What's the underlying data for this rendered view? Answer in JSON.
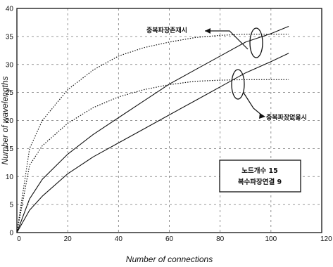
{
  "chart_data": {
    "type": "line",
    "xlabel": "Number of connections",
    "ylabel": "Number of wavelengths",
    "xlim": [
      0,
      120
    ],
    "ylim": [
      0,
      40
    ],
    "xticks": [
      0,
      20,
      40,
      60,
      80,
      100,
      120
    ],
    "yticks": [
      0,
      5,
      10,
      15,
      20,
      25,
      30,
      35,
      40
    ],
    "grid": "dotted",
    "series": [
      {
        "style": "dotted",
        "x": [
          0,
          5,
          10,
          20,
          30,
          40,
          50,
          60,
          70,
          80,
          90,
          100,
          107
        ],
        "y": [
          0,
          15,
          20,
          25.5,
          29,
          31.5,
          33,
          34,
          34.8,
          35.2,
          35.4,
          35.4,
          35.4
        ]
      },
      {
        "style": "solid",
        "x": [
          0,
          5,
          10,
          20,
          30,
          40,
          50,
          60,
          70,
          80,
          90,
          100,
          107
        ],
        "y": [
          0,
          6,
          9.5,
          14,
          17.5,
          20.5,
          23.5,
          26.5,
          29,
          31.5,
          34,
          35.5,
          36.8
        ]
      },
      {
        "style": "dotted",
        "x": [
          0,
          5,
          10,
          20,
          30,
          40,
          50,
          60,
          70,
          80,
          90,
          100,
          107
        ],
        "y": [
          0,
          12,
          15.5,
          19.5,
          22.3,
          24.2,
          25.5,
          26.4,
          27,
          27.2,
          27.3,
          27.3,
          27.3
        ]
      },
      {
        "style": "solid",
        "x": [
          0,
          5,
          10,
          20,
          30,
          40,
          50,
          60,
          70,
          80,
          90,
          100,
          107
        ],
        "y": [
          0,
          4,
          6.5,
          10.5,
          13.5,
          16,
          18.5,
          21,
          23.5,
          26,
          28.5,
          30.5,
          32
        ]
      }
    ],
    "annotations": [
      {
        "text": "중복파장존재시",
        "target_series": [
          0,
          1
        ]
      },
      {
        "text": "중복파장없을시",
        "target_series": [
          2,
          3
        ]
      }
    ],
    "info_box": [
      "노드개수 15",
      "복수파장연결 9"
    ]
  }
}
